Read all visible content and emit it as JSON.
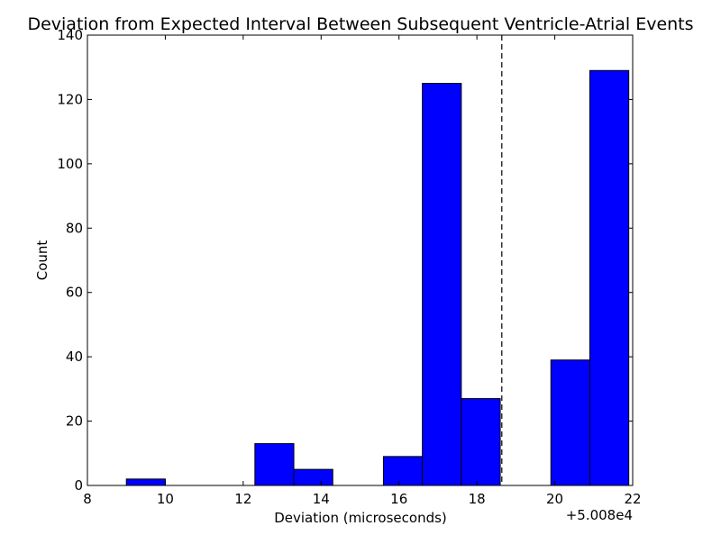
{
  "chart_data": {
    "type": "bar",
    "title": "Deviation from Expected Interval Between Subsequent Ventricle-Atrial Events",
    "xlabel": "Deviation (microseconds)",
    "ylabel": "Count",
    "x_offset_label": "+5.008e4",
    "xlim": [
      8,
      22
    ],
    "ylim": [
      0,
      140
    ],
    "x_ticks": [
      8,
      10,
      12,
      14,
      16,
      18,
      20,
      22
    ],
    "y_ticks": [
      0,
      20,
      40,
      60,
      80,
      100,
      120,
      140
    ],
    "bins": [
      {
        "x0": 9.0,
        "x1": 10.0,
        "count": 2
      },
      {
        "x0": 10.0,
        "x1": 11.0,
        "count": 0
      },
      {
        "x0": 11.0,
        "x1": 12.3,
        "count": 0
      },
      {
        "x0": 12.3,
        "x1": 13.3,
        "count": 13
      },
      {
        "x0": 13.3,
        "x1": 14.3,
        "count": 5
      },
      {
        "x0": 14.3,
        "x1": 15.6,
        "count": 0
      },
      {
        "x0": 15.6,
        "x1": 16.6,
        "count": 9
      },
      {
        "x0": 16.6,
        "x1": 17.6,
        "count": 125
      },
      {
        "x0": 17.6,
        "x1": 18.6,
        "count": 27
      },
      {
        "x0": 18.6,
        "x1": 19.9,
        "count": 0
      },
      {
        "x0": 19.9,
        "x1": 20.9,
        "count": 39
      },
      {
        "x0": 20.9,
        "x1": 21.9,
        "count": 129
      }
    ],
    "reference_line": {
      "x": 18.64,
      "style": "dashed"
    },
    "bar_color": "#0000ff",
    "edge_color": "#000000",
    "grid": false
  }
}
